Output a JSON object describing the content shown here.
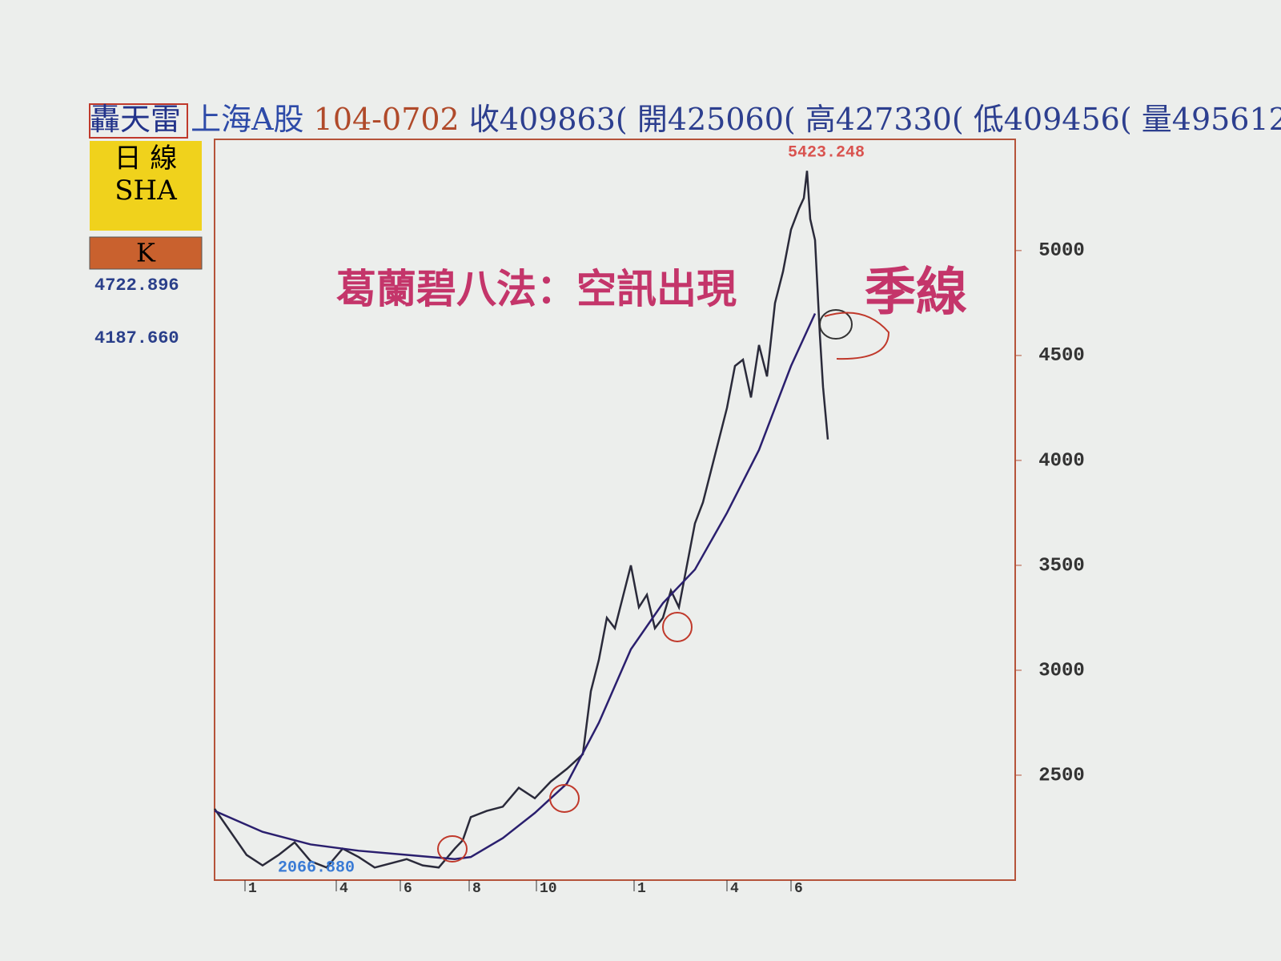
{
  "header": {
    "name": "轟天雷",
    "market": "上海A股",
    "date": "104-0702",
    "close": "收409863(",
    "open": "開425060(",
    "high": "高427330(",
    "low": "低409456(",
    "volume": "量495612"
  },
  "side_panel": {
    "period": "日 線",
    "symbol": "SHA",
    "mode": "K",
    "value_1": "4722.896",
    "value_2": "4187.660"
  },
  "chart_data": {
    "type": "line",
    "annotations": {
      "title": "葛蘭碧八法：空訊出現",
      "ma_label": "季線",
      "high_label": "5423.248",
      "low_label": "2066.880"
    },
    "xlim": [
      0,
      500
    ],
    "xticks": [
      {
        "value": 19,
        "label": "1"
      },
      {
        "value": 76,
        "label": "4"
      },
      {
        "value": 116,
        "label": "6"
      },
      {
        "value": 159,
        "label": "8"
      },
      {
        "value": 201,
        "label": "10"
      },
      {
        "value": 262,
        "label": "1"
      },
      {
        "value": 320,
        "label": "4"
      },
      {
        "value": 360,
        "label": "6"
      }
    ],
    "ylim": [
      2000,
      5530
    ],
    "yticks": [
      2500,
      3000,
      3500,
      4000,
      4500,
      5000
    ],
    "series": [
      {
        "name": "K",
        "color": "#2a2a3a",
        "x": [
          0,
          10,
          20,
          30,
          40,
          50,
          60,
          70,
          80,
          90,
          100,
          110,
          120,
          130,
          140,
          150,
          155,
          160,
          170,
          180,
          190,
          200,
          210,
          220,
          230,
          235,
          240,
          245,
          250,
          255,
          260,
          265,
          270,
          275,
          280,
          285,
          290,
          295,
          300,
          305,
          310,
          315,
          320,
          325,
          330,
          335,
          340,
          345,
          350,
          355,
          360,
          365,
          368,
          370,
          372,
          375,
          378,
          380,
          383
        ],
        "values": [
          2340,
          2230,
          2120,
          2070,
          2120,
          2180,
          2090,
          2060,
          2150,
          2110,
          2060,
          2080,
          2100,
          2070,
          2060,
          2150,
          2190,
          2300,
          2330,
          2350,
          2440,
          2390,
          2470,
          2530,
          2600,
          2900,
          3050,
          3250,
          3200,
          3350,
          3500,
          3300,
          3360,
          3200,
          3250,
          3380,
          3300,
          3500,
          3700,
          3800,
          3950,
          4100,
          4250,
          4450,
          4480,
          4300,
          4550,
          4400,
          4750,
          4900,
          5100,
          5200,
          5250,
          5380,
          5150,
          5050,
          4600,
          4350,
          4100
        ]
      },
      {
        "name": "季線",
        "color": "#2a1f6e",
        "x": [
          0,
          30,
          60,
          90,
          120,
          150,
          160,
          180,
          200,
          220,
          240,
          260,
          280,
          300,
          320,
          340,
          360,
          375
        ],
        "values": [
          2330,
          2230,
          2170,
          2140,
          2120,
          2100,
          2110,
          2200,
          2320,
          2460,
          2750,
          3100,
          3320,
          3480,
          3750,
          4050,
          4450,
          4700
        ]
      }
    ]
  }
}
